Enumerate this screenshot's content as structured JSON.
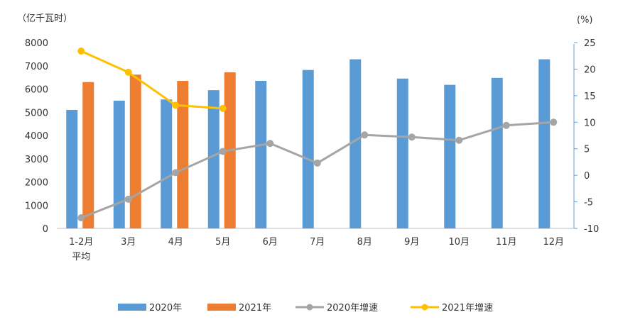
{
  "chart_data": {
    "type": "bar",
    "title": "",
    "left_axis_unit": "（亿千瓦时）",
    "right_axis_unit": "(%)",
    "categories": [
      "1-2月",
      "3月",
      "4月",
      "5月",
      "6月",
      "7月",
      "8月",
      "9月",
      "10月",
      "11月",
      "12月"
    ],
    "first_category_line2": "平均",
    "left_axis": {
      "min": 0,
      "max": 8000,
      "ticks": [
        0,
        1000,
        2000,
        3000,
        4000,
        5000,
        6000,
        7000,
        8000
      ]
    },
    "right_axis": {
      "min": -10,
      "max": 25,
      "ticks": [
        -10,
        -5,
        0,
        5,
        10,
        15,
        20,
        25
      ]
    },
    "series": [
      {
        "name": "2020年",
        "type": "bar",
        "axis": "left",
        "color": "#5B9BD5",
        "values": [
          5100,
          5500,
          5550,
          5950,
          6350,
          6820,
          7280,
          6450,
          6180,
          6480,
          7280
        ]
      },
      {
        "name": "2021年",
        "type": "bar",
        "axis": "left",
        "color": "#ED7D31",
        "values": [
          6300,
          6620,
          6350,
          6720,
          null,
          null,
          null,
          null,
          null,
          null,
          null
        ]
      },
      {
        "name": "2020年增速",
        "type": "line",
        "axis": "right",
        "color": "#A5A5A5",
        "values": [
          -8.0,
          -4.5,
          0.5,
          4.5,
          6.0,
          2.3,
          7.6,
          7.2,
          6.6,
          9.4,
          10.0
        ]
      },
      {
        "name": "2021年增速",
        "type": "line",
        "axis": "right",
        "color": "#FFC000",
        "values": [
          23.4,
          19.4,
          13.2,
          12.6,
          null,
          null,
          null,
          null,
          null,
          null,
          null
        ]
      }
    ],
    "legend_position": "bottom",
    "grid": false
  }
}
